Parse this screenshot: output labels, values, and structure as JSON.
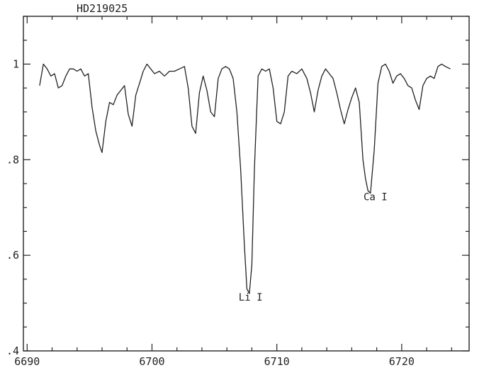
{
  "chart_data": {
    "type": "line",
    "title": "HD219025",
    "xlabel": "",
    "ylabel": "",
    "xlim": [
      6689.7,
      6725.4
    ],
    "ylim": [
      0.4,
      1.1
    ],
    "grid": false,
    "x_major_ticks": [
      6690,
      6700,
      6710,
      6720
    ],
    "x_tick_labels": [
      "6690",
      "6700",
      "6710",
      "6720"
    ],
    "y_major_ticks": [
      0.4,
      0.6,
      0.8,
      1.0
    ],
    "y_tick_labels": [
      ".4",
      ".6",
      ".8",
      "1"
    ],
    "series": [
      {
        "x": [
          6691.0,
          6691.3,
          6691.6,
          6691.9,
          6692.2,
          6692.5,
          6692.8,
          6693.1,
          6693.4,
          6693.7,
          6694.0,
          6694.3,
          6694.6,
          6694.9,
          6695.2,
          6695.5,
          6695.8,
          6696.0,
          6696.3,
          6696.6,
          6696.9,
          6697.2,
          6697.5,
          6697.8,
          6698.1,
          6698.4,
          6698.7,
          6699.0,
          6699.3,
          6699.6,
          6699.9,
          6700.2,
          6700.6,
          6701.0,
          6701.4,
          6701.8,
          6702.2,
          6702.6,
          6702.9,
          6703.2,
          6703.5,
          6703.8,
          6704.1,
          6704.4,
          6704.7,
          6705.0,
          6705.3,
          6705.6,
          6705.9,
          6706.2,
          6706.5,
          6706.8,
          6707.1,
          6707.4,
          6707.6,
          6707.8,
          6708.0,
          6708.2,
          6708.5,
          6708.8,
          6709.1,
          6709.4,
          6709.7,
          6710.0,
          6710.3,
          6710.6,
          6710.9,
          6711.2,
          6711.6,
          6712.0,
          6712.4,
          6712.7,
          6713.0,
          6713.3,
          6713.6,
          6713.9,
          6714.2,
          6714.5,
          6714.8,
          6715.1,
          6715.4,
          6715.7,
          6716.0,
          6716.3,
          6716.6,
          6716.9,
          6717.1,
          6717.3,
          6717.5,
          6717.8,
          6718.1,
          6718.4,
          6718.7,
          6719.0,
          6719.3,
          6719.6,
          6719.9,
          6720.2,
          6720.5,
          6720.8,
          6721.1,
          6721.4,
          6721.7,
          6722.0,
          6722.3,
          6722.6,
          6722.9,
          6723.2,
          6723.5,
          6723.9
        ],
        "y": [
          0.955,
          1.0,
          0.99,
          0.975,
          0.98,
          0.95,
          0.955,
          0.975,
          0.99,
          0.99,
          0.985,
          0.99,
          0.975,
          0.98,
          0.91,
          0.86,
          0.83,
          0.815,
          0.88,
          0.92,
          0.915,
          0.935,
          0.945,
          0.955,
          0.895,
          0.87,
          0.935,
          0.96,
          0.985,
          1.0,
          0.99,
          0.98,
          0.985,
          0.975,
          0.985,
          0.985,
          0.99,
          0.995,
          0.95,
          0.87,
          0.855,
          0.94,
          0.975,
          0.945,
          0.9,
          0.89,
          0.97,
          0.99,
          0.995,
          0.99,
          0.97,
          0.9,
          0.78,
          0.62,
          0.53,
          0.52,
          0.58,
          0.78,
          0.975,
          0.99,
          0.985,
          0.99,
          0.95,
          0.88,
          0.875,
          0.9,
          0.975,
          0.985,
          0.98,
          0.99,
          0.97,
          0.94,
          0.9,
          0.945,
          0.975,
          0.99,
          0.98,
          0.97,
          0.94,
          0.905,
          0.875,
          0.905,
          0.93,
          0.95,
          0.92,
          0.8,
          0.76,
          0.735,
          0.73,
          0.82,
          0.96,
          0.995,
          1.0,
          0.985,
          0.96,
          0.975,
          0.98,
          0.97,
          0.955,
          0.95,
          0.925,
          0.905,
          0.955,
          0.97,
          0.975,
          0.97,
          0.995,
          1.0,
          0.995,
          0.99
        ]
      }
    ],
    "annotations": [
      {
        "text": "Li I",
        "x": 6707.9,
        "y": 0.505
      },
      {
        "text": "Ca I",
        "x": 6717.9,
        "y": 0.715
      }
    ]
  }
}
